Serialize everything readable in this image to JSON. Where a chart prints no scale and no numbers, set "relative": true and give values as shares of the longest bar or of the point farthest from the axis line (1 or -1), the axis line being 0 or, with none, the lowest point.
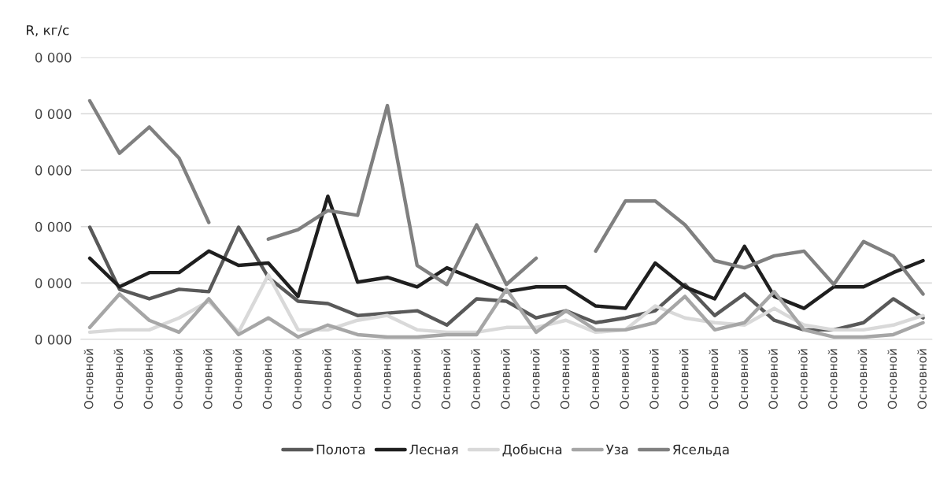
{
  "chart_data": {
    "type": "line",
    "ylabel": "R, кг/с",
    "relative": true,
    "categories": [
      "Основной",
      "Основной",
      "Основной",
      "Основной",
      "Основной",
      "Основной",
      "Основной",
      "Основной",
      "Основной",
      "Основной",
      "Основной",
      "Основной",
      "Основной",
      "Основной",
      "Основной",
      "Основной",
      "Основной",
      "Основной",
      "Основной",
      "Основной",
      "Основной",
      "Основной",
      "Основной",
      "Основной",
      "Основной",
      "Основной",
      "Основной",
      "Основной",
      "Основной"
    ],
    "annotations": [
      "0 000",
      "0 000",
      "0 000",
      "0 000",
      "0 000",
      "0 000"
    ],
    "grid": "y",
    "legend": "bottom",
    "marker": "none",
    "line_style": "solid",
    "series": [
      {
        "name": "Полота",
        "color": "#595959",
        "values": [
          0.47,
          0.21,
          0.17,
          0.21,
          0.2,
          0.47,
          0.26,
          0.16,
          0.15,
          0.1,
          0.11,
          0.12,
          0.06,
          0.17,
          0.16,
          0.09,
          0.12,
          0.07,
          0.09,
          0.12,
          0.23,
          0.1,
          0.19,
          0.08,
          0.04,
          0.04,
          0.07,
          0.17,
          0.09
        ]
      },
      {
        "name": "Лесная",
        "color": "#1f1f1f",
        "values": [
          0.34,
          0.22,
          0.28,
          0.28,
          0.37,
          0.31,
          0.32,
          0.18,
          0.6,
          0.24,
          0.26,
          0.22,
          0.3,
          0.25,
          0.2,
          0.22,
          0.22,
          0.14,
          0.13,
          0.32,
          0.22,
          0.17,
          0.39,
          0.18,
          0.13,
          0.22,
          0.22,
          0.28,
          0.33
        ]
      },
      {
        "name": "Добысна",
        "color": "#d9d9d9",
        "values": [
          0.03,
          0.04,
          0.04,
          0.09,
          0.16,
          0.03,
          0.27,
          0.04,
          0.04,
          0.08,
          0.1,
          0.04,
          0.03,
          0.03,
          0.05,
          0.05,
          0.08,
          0.03,
          0.04,
          0.14,
          0.09,
          0.07,
          0.06,
          0.13,
          0.06,
          0.04,
          0.04,
          0.06,
          0.1
        ]
      },
      {
        "name": "Уза",
        "color": "#a6a6a6",
        "values": [
          0.05,
          0.19,
          0.08,
          0.03,
          0.17,
          0.02,
          0.09,
          0.01,
          0.06,
          0.02,
          0.01,
          0.01,
          0.02,
          0.02,
          0.21,
          0.03,
          0.12,
          0.04,
          0.04,
          0.07,
          0.18,
          0.04,
          0.07,
          0.2,
          0.04,
          0.01,
          0.01,
          0.02,
          0.07
        ]
      },
      {
        "name": "Ясельда",
        "color": "#808080",
        "values": [
          1,
          0.78,
          0.89,
          0.76,
          0.49,
          null,
          0.42,
          0.46,
          0.54,
          0.52,
          0.98,
          0.31,
          0.23,
          0.48,
          0.23,
          0.34,
          null,
          0.37,
          0.58,
          0.58,
          0.48,
          0.33,
          0.3,
          0.35,
          0.37,
          0.23,
          0.41,
          0.35,
          0.19
        ]
      }
    ]
  }
}
